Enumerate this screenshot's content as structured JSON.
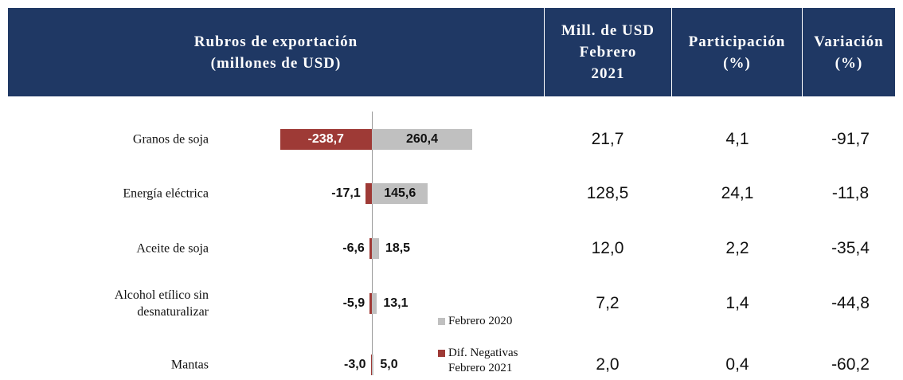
{
  "chart_data": {
    "type": "bar",
    "categories": [
      "Granos de soja",
      "Energía eléctrica",
      "Aceite de soja",
      "Alcohol etílico sin desnaturalizar",
      "Mantas"
    ],
    "series": [
      {
        "name": "Febrero 2020",
        "color": "#c0c0c0",
        "values": [
          260.4,
          145.6,
          18.5,
          13.1,
          5.0
        ],
        "value_labels": [
          "260,4",
          "145,6",
          "18,5",
          "13,1",
          "5,0"
        ]
      },
      {
        "name": "Dif. Negativas Febrero 2021",
        "color": "#9e3a36",
        "values": [
          -238.7,
          -17.1,
          -6.6,
          -5.9,
          -3.0
        ],
        "value_labels": [
          "-238,7",
          "-17,1",
          "-6,6",
          "-5,9",
          "-3,0"
        ]
      }
    ]
  },
  "table": {
    "headers": [
      [
        "Rubros de exportación",
        "(millones de USD)"
      ],
      [
        "Mill. de USD",
        "Febrero",
        "2021"
      ],
      [
        "Participación",
        "(%)"
      ],
      [
        "Variación",
        "(%)"
      ]
    ],
    "rows": [
      [
        "21,7",
        "4,1",
        "-91,7"
      ],
      [
        "128,5",
        "24,1",
        "-11,8"
      ],
      [
        "12,0",
        "2,2",
        "-35,4"
      ],
      [
        "7,2",
        "1,4",
        "-44,8"
      ],
      [
        "2,0",
        "0,4",
        "-60,2"
      ]
    ]
  }
}
